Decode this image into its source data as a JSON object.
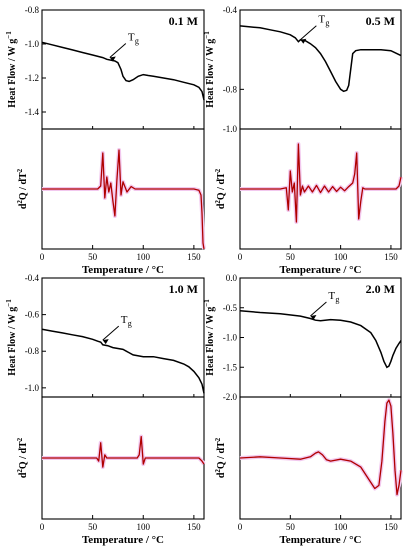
{
  "figure": {
    "x_axis_label": "Temperature / °C",
    "y_axis_top_label": "Heat Flow / W g",
    "y_axis_top_superscript": "−1",
    "y_axis_bottom_label_base": "d",
    "y_axis_bottom_label_sup1": "2",
    "y_axis_bottom_label_mid": "Q / dT",
    "y_axis_bottom_label_sup2": "2",
    "tg_label": "T",
    "tg_subscript": "g",
    "colors": {
      "heat_flow": "#000000",
      "derivative": "#b00000",
      "derivative_shadow": "#f2c8ee"
    }
  },
  "chart_data": [
    {
      "type": "line",
      "concentration": "0.1 M",
      "xlim": [
        0,
        160
      ],
      "x_ticks": [
        "0",
        "50",
        "100",
        "150"
      ],
      "top": {
        "ylim": [
          -1.5,
          -0.8
        ],
        "y_ticks": [
          "-0.8",
          "-1.0",
          "-1.2",
          "-1.4"
        ],
        "tg_annotation_x": 65,
        "series": [
          {
            "x": [
              0,
              10,
              20,
              30,
              40,
              50,
              60,
              64,
              68,
              72,
              75,
              78,
              80,
              83,
              86,
              90,
              95,
              100,
              105,
              110,
              120,
              130,
              140,
              150,
              155,
              158,
              160
            ],
            "y": [
              -0.99,
              -1.005,
              -1.02,
              -1.035,
              -1.05,
              -1.065,
              -1.08,
              -1.09,
              -1.095,
              -1.1,
              -1.11,
              -1.15,
              -1.19,
              -1.215,
              -1.22,
              -1.21,
              -1.19,
              -1.18,
              -1.185,
              -1.19,
              -1.2,
              -1.21,
              -1.225,
              -1.24,
              -1.255,
              -1.28,
              -1.33
            ]
          }
        ]
      },
      "bottom": {
        "ylim": [
          -1,
          1
        ],
        "series": [
          {
            "x": [
              0,
              30,
              55,
              58,
              60,
              62,
              64,
              66,
              68,
              70,
              72,
              74,
              76,
              78,
              80,
              84,
              88,
              92,
              100,
              110,
              130,
              150,
              155,
              157,
              158,
              159,
              160
            ],
            "y": [
              0,
              0,
              0,
              0.05,
              0.6,
              -0.15,
              0.2,
              -0.05,
              0.1,
              -0.2,
              -0.45,
              0.15,
              0.65,
              -0.1,
              0.12,
              -0.05,
              0.04,
              0,
              0,
              0,
              0,
              0,
              -0.02,
              -0.1,
              -0.4,
              -0.9,
              -1.0
            ]
          }
        ]
      }
    },
    {
      "type": "line",
      "concentration": "0.5 M",
      "xlim": [
        0,
        160
      ],
      "x_ticks": [
        "0",
        "50",
        "100",
        "150"
      ],
      "top": {
        "ylim": [
          -1.0,
          -0.4
        ],
        "y_ticks": [
          "-0.4",
          "-0.8",
          "-1.0"
        ],
        "tg_annotation_x": 58,
        "series": [
          {
            "x": [
              0,
              10,
              20,
              30,
              40,
              50,
              55,
              58,
              60,
              65,
              70,
              75,
              80,
              85,
              90,
              95,
              100,
              103,
              106,
              108,
              110,
              112,
              115,
              120,
              130,
              140,
              150,
              160
            ],
            "y": [
              -0.48,
              -0.485,
              -0.49,
              -0.5,
              -0.51,
              -0.525,
              -0.54,
              -0.56,
              -0.55,
              -0.555,
              -0.57,
              -0.59,
              -0.62,
              -0.66,
              -0.71,
              -0.76,
              -0.8,
              -0.81,
              -0.805,
              -0.78,
              -0.7,
              -0.62,
              -0.605,
              -0.6,
              -0.6,
              -0.6,
              -0.605,
              -0.63
            ]
          }
        ]
      },
      "bottom": {
        "ylim": [
          -1,
          1
        ],
        "series": [
          {
            "x": [
              0,
              20,
              40,
              46,
              48,
              50,
              52,
              54,
              56,
              58,
              60,
              62,
              64,
              68,
              72,
              76,
              80,
              84,
              88,
              92,
              96,
              100,
              104,
              108,
              112,
              114,
              116,
              118,
              120,
              122,
              124,
              128,
              140,
              155,
              158,
              160
            ],
            "y": [
              0,
              0,
              0,
              0.02,
              -0.35,
              0.3,
              -0.05,
              0.1,
              -0.55,
              0.75,
              -0.1,
              0.05,
              -0.05,
              0.05,
              -0.05,
              0.06,
              -0.06,
              0.05,
              -0.05,
              0.04,
              -0.04,
              0.03,
              -0.03,
              0.04,
              0.1,
              0.25,
              0.6,
              -0.5,
              -0.2,
              0.02,
              0,
              0,
              0,
              0,
              0.05,
              0.2
            ]
          }
        ]
      }
    },
    {
      "type": "line",
      "concentration": "1.0 M",
      "xlim": [
        0,
        160
      ],
      "x_ticks": [
        "0",
        "50",
        "100",
        "150"
      ],
      "top": {
        "ylim": [
          -1.05,
          -0.4
        ],
        "y_ticks": [
          "-0.4",
          "-0.6",
          "-0.8",
          "-1.0"
        ],
        "tg_annotation_x": 58,
        "series": [
          {
            "x": [
              0,
              10,
              20,
              30,
              40,
              50,
              55,
              58,
              60,
              65,
              70,
              80,
              90,
              100,
              110,
              120,
              130,
              140,
              145,
              150,
              155,
              158,
              160
            ],
            "y": [
              -0.68,
              -0.69,
              -0.7,
              -0.71,
              -0.72,
              -0.735,
              -0.745,
              -0.75,
              -0.765,
              -0.77,
              -0.78,
              -0.79,
              -0.82,
              -0.83,
              -0.83,
              -0.84,
              -0.85,
              -0.87,
              -0.885,
              -0.91,
              -0.945,
              -0.98,
              -1.03
            ]
          }
        ]
      },
      "bottom": {
        "ylim": [
          -1,
          1
        ],
        "series": [
          {
            "x": [
              0,
              20,
              40,
              54,
              56,
              58,
              60,
              62,
              64,
              80,
              94,
              96,
              98,
              100,
              102,
              120,
              150,
              155,
              158,
              160
            ],
            "y": [
              0,
              0,
              0,
              0,
              -0.05,
              0.25,
              -0.15,
              0.05,
              0,
              0,
              0,
              0.05,
              0.35,
              -0.1,
              0,
              0,
              0,
              0,
              -0.05,
              -0.1
            ]
          }
        ]
      }
    },
    {
      "type": "line",
      "concentration": "2.0 M",
      "xlim": [
        0,
        160
      ],
      "x_ticks": [
        "0",
        "50",
        "100",
        "150"
      ],
      "top": {
        "ylim": [
          -2.0,
          0.0
        ],
        "y_ticks": [
          "0.0",
          "-0.5",
          "-1.0",
          "-1.5",
          "-2.0"
        ],
        "tg_annotation_x": 68,
        "series": [
          {
            "x": [
              0,
              20,
              40,
              60,
              70,
              75,
              80,
              90,
              100,
              110,
              120,
              130,
              135,
              140,
              143,
              146,
              148,
              150,
              152,
              155,
              158,
              160
            ],
            "y": [
              -0.55,
              -0.58,
              -0.6,
              -0.64,
              -0.68,
              -0.71,
              -0.72,
              -0.7,
              -0.71,
              -0.74,
              -0.8,
              -0.92,
              -1.05,
              -1.25,
              -1.4,
              -1.5,
              -1.48,
              -1.4,
              -1.3,
              -1.18,
              -1.1,
              -1.05
            ]
          }
        ]
      },
      "bottom": {
        "ylim": [
          -1,
          1
        ],
        "series": [
          {
            "x": [
              0,
              20,
              40,
              60,
              70,
              75,
              78,
              82,
              86,
              90,
              100,
              110,
              120,
              128,
              134,
              138,
              141,
              144,
              146,
              148,
              150,
              152,
              154,
              156,
              158,
              160
            ],
            "y": [
              0,
              0.02,
              0,
              -0.02,
              0.02,
              0.08,
              0.1,
              0.05,
              -0.03,
              -0.05,
              -0.02,
              -0.05,
              -0.15,
              -0.35,
              -0.5,
              -0.45,
              -0.05,
              0.6,
              0.9,
              0.95,
              0.85,
              0.4,
              -0.2,
              -0.6,
              -0.45,
              -0.2
            ]
          }
        ]
      }
    }
  ]
}
